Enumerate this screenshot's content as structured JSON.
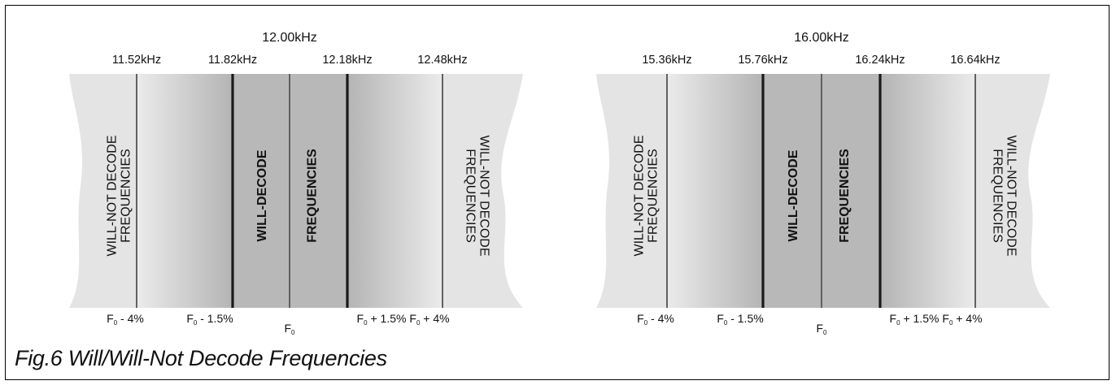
{
  "caption": "Fig.6 Will/Will-Not Decode Frequencies",
  "colors": {
    "outer_band": "#e4e4e4",
    "inner_band": "#b8b8b8",
    "line": "#1a1a1a"
  },
  "panels": [
    {
      "center_label": "12.00kHz",
      "top_labels": [
        "11.52kHz",
        "11.82kHz",
        "12.18kHz",
        "12.48kHz"
      ],
      "bottom_labels": [
        {
          "base": "F",
          "sub": "0",
          "suffix": " - 4%"
        },
        {
          "base": "F",
          "sub": "0",
          "suffix": " - 1.5%"
        },
        {
          "base": "F",
          "sub": "0",
          "suffix": ""
        },
        {
          "base": "F",
          "sub": "0",
          "suffix": " + 1.5%"
        },
        {
          "base": "F",
          "sub": "0",
          "suffix": " + 4%"
        }
      ],
      "left_region": [
        "WILL-NOT DECODE",
        "FREQUENCIES"
      ],
      "center_region": [
        "WILL-DECODE",
        "FREQUENCIES"
      ],
      "right_region": [
        "WILL-NOT DECODE",
        "FREQUENCIES"
      ]
    },
    {
      "center_label": "16.00kHz",
      "top_labels": [
        "15.36kHz",
        "15.76kHz",
        "16.24kHz",
        "16.64kHz"
      ],
      "bottom_labels": [
        {
          "base": "F",
          "sub": "0",
          "suffix": " - 4%"
        },
        {
          "base": "F",
          "sub": "0",
          "suffix": " - 1.5%"
        },
        {
          "base": "F",
          "sub": "0",
          "suffix": ""
        },
        {
          "base": "F",
          "sub": "0",
          "suffix": " + 1.5%"
        },
        {
          "base": "F",
          "sub": "0",
          "suffix": " + 4%"
        }
      ],
      "left_region": [
        "WILL-NOT DECODE",
        "FREQUENCIES"
      ],
      "center_region": [
        "WILL-DECODE",
        "FREQUENCIES"
      ],
      "right_region": [
        "WILL-NOT DECODE",
        "FREQUENCIES"
      ]
    }
  ]
}
